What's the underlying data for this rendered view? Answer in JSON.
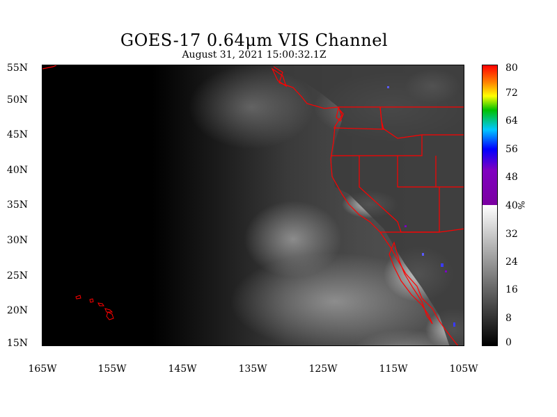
{
  "title": "GOES-17  0.64μm VIS Channel",
  "subtitle": "August 31,  2021 15:00:32.1Z",
  "map": {
    "lat_ticks": [
      "55N",
      "50N",
      "45N",
      "40N",
      "35N",
      "30N",
      "25N",
      "20N",
      "15N"
    ],
    "lon_ticks": [
      "165W",
      "155W",
      "145W",
      "135W",
      "125W",
      "115W",
      "105W"
    ],
    "lat_range": [
      15,
      55
    ],
    "lon_range": [
      -165,
      -105
    ],
    "border_color": "#ff0000",
    "night_color": "#000000"
  },
  "colorbar": {
    "labels": [
      "80",
      "72",
      "64",
      "56",
      "48",
      "40",
      "32",
      "24",
      "16",
      "8",
      "0"
    ],
    "unit": "%",
    "range": [
      0,
      80
    ]
  }
}
